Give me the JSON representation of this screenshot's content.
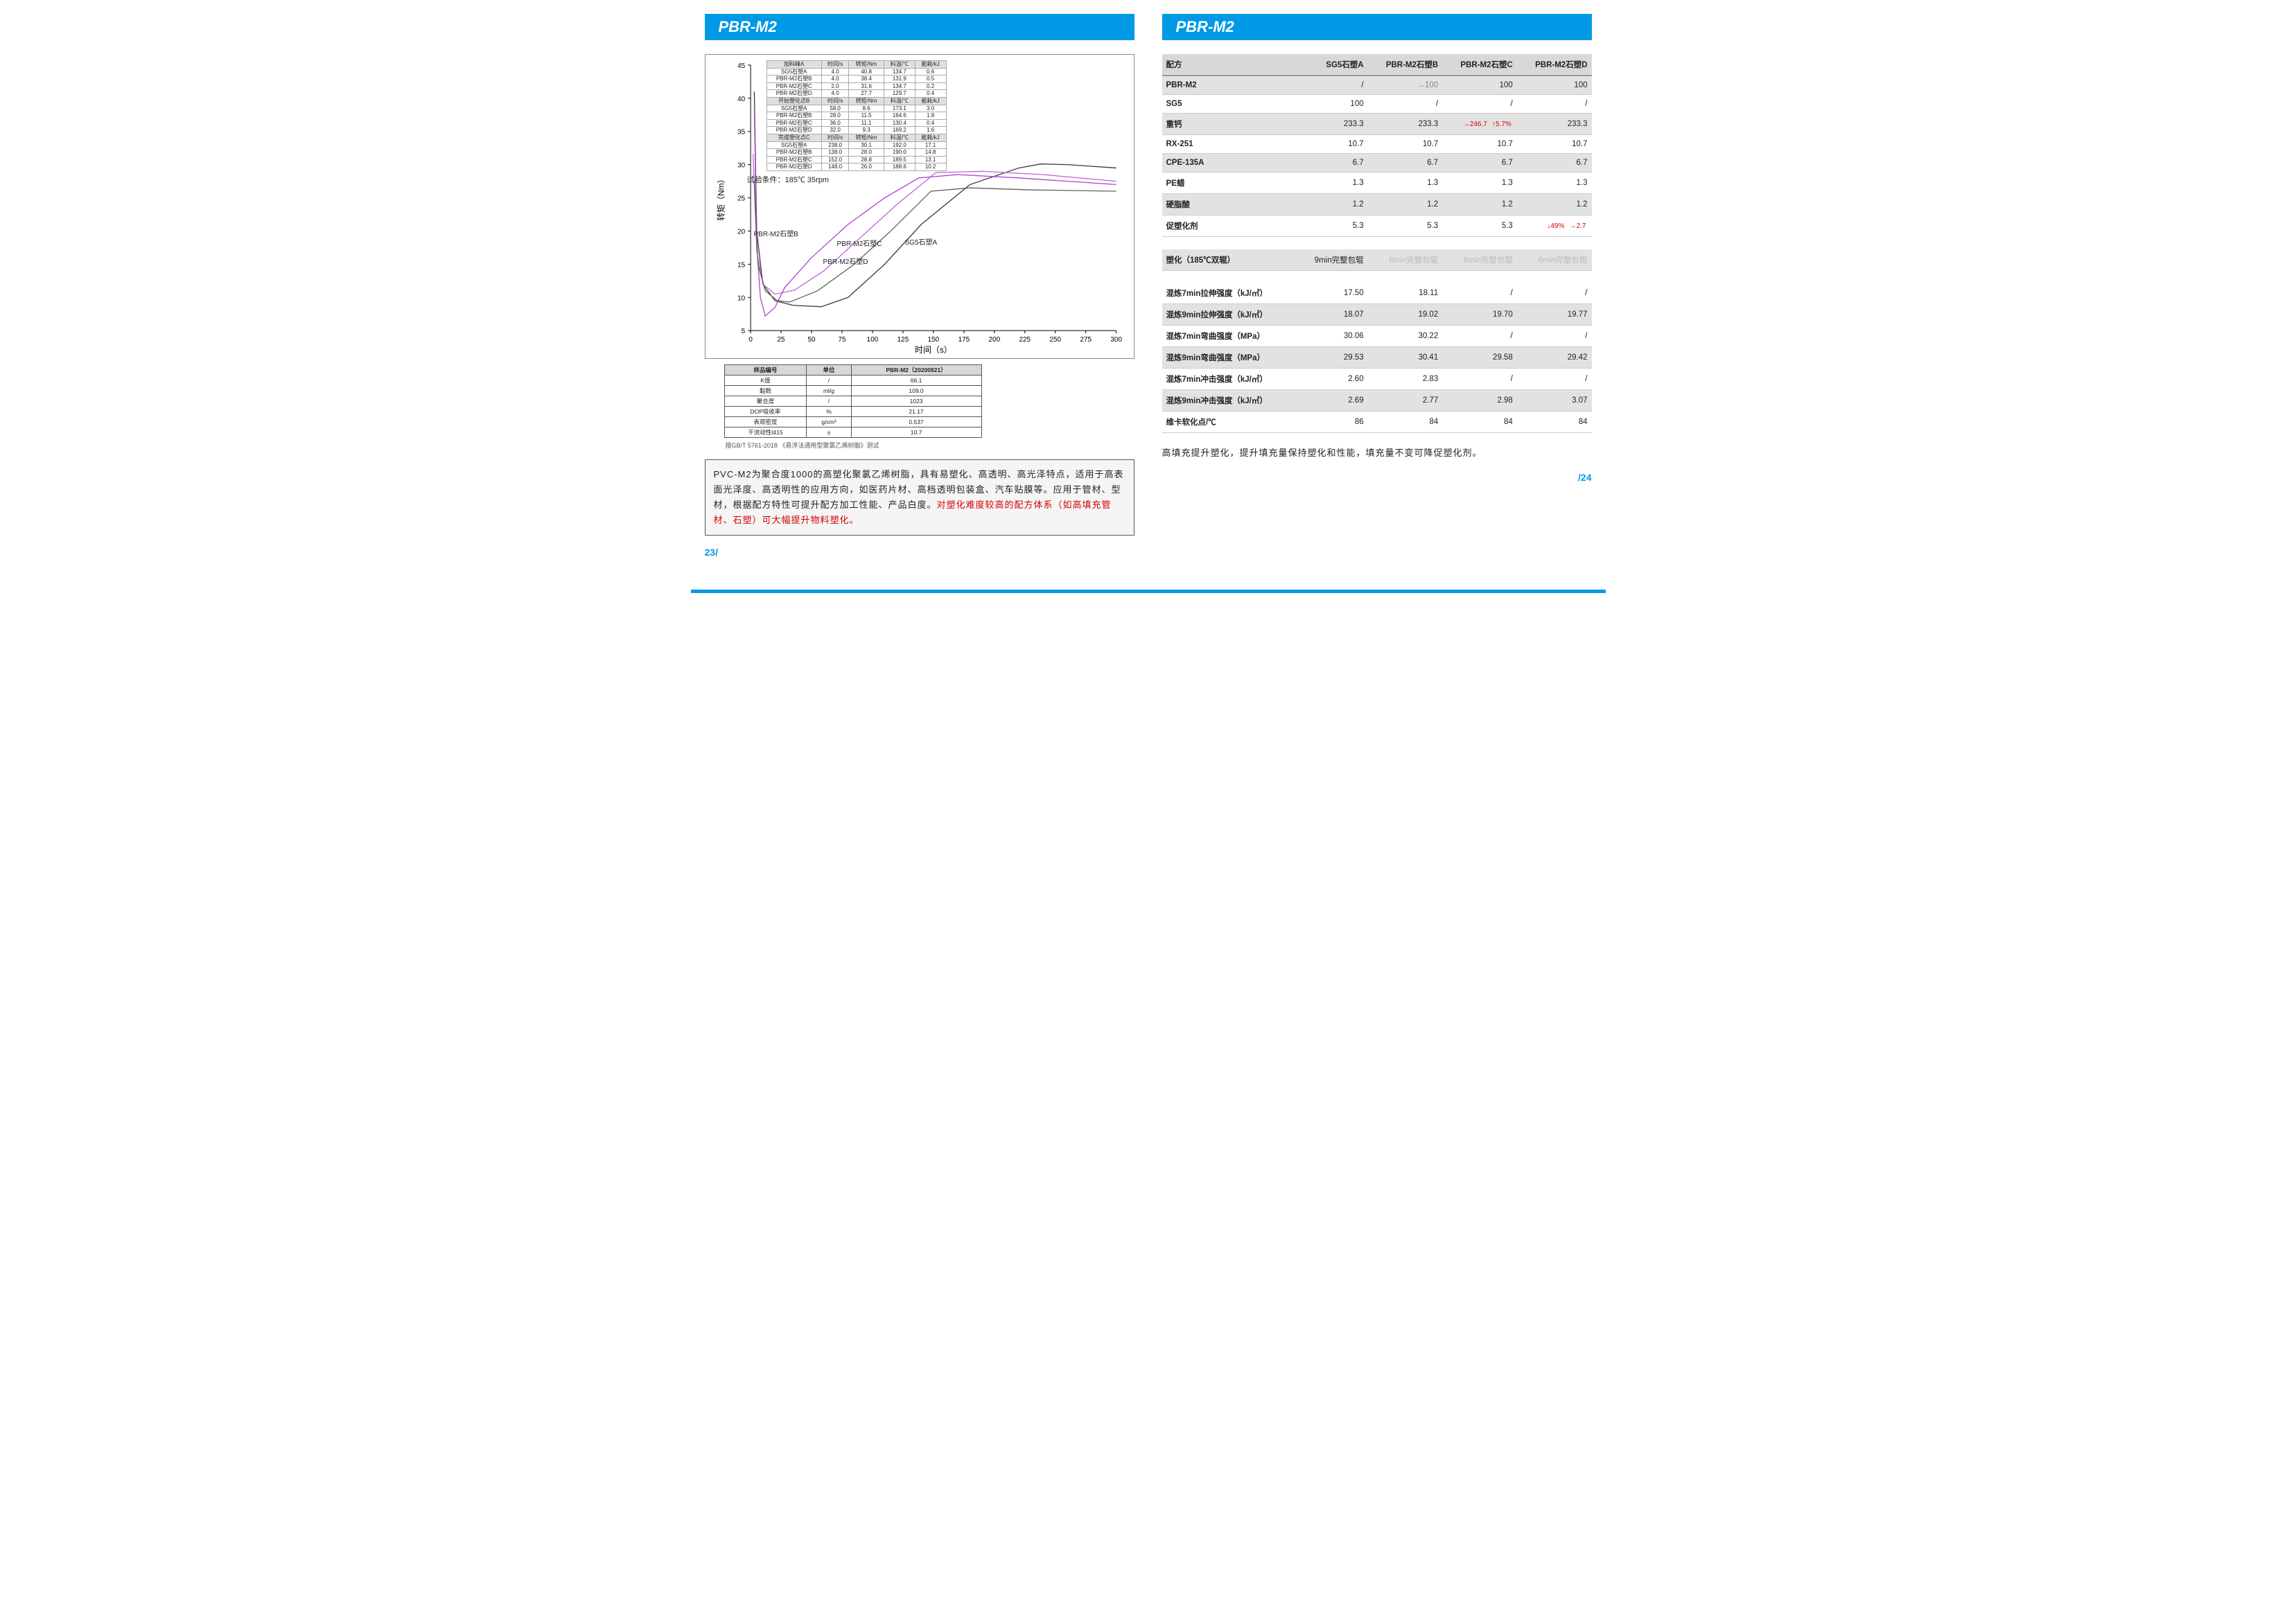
{
  "header": {
    "left": "PBR-M2",
    "right": "PBR-M2"
  },
  "chart": {
    "y_label": "转矩（Nm）",
    "x_label": "时间（s）",
    "xlim": [
      0,
      300
    ],
    "ylim": [
      5,
      45
    ],
    "xticks": [
      0,
      25,
      50,
      75,
      100,
      125,
      150,
      175,
      200,
      225,
      250,
      275,
      300
    ],
    "yticks": [
      5,
      10,
      15,
      20,
      25,
      30,
      35,
      40,
      45
    ],
    "condition": "试验条件：185℃  35rpm",
    "series_labels": {
      "A": "SG5石塑A",
      "B": "PBR-M2石塑B",
      "C": "PBR-M2石塑C",
      "D": "PBR-M2石塑D"
    },
    "colors": {
      "A": "#3a3a3a",
      "B": "#b040d0",
      "C": "#c060d8",
      "D": "#606060"
    },
    "table": {
      "sections": [
        {
          "hdr": [
            "加料峰A",
            "时间/s",
            "转矩/Nm",
            "料温/℃",
            "能耗/kJ"
          ],
          "rows": [
            [
              "SG5石塑A",
              "4.0",
              "40.8",
              "134.7",
              "0.6"
            ],
            [
              "PBR-M2石塑B",
              "4.0",
              "38.4",
              "131.9",
              "0.5"
            ],
            [
              "PBR-M2石塑C",
              "2.0",
              "31.6",
              "134.7",
              "0.2"
            ],
            [
              "PBR-M2石塑D",
              "4.0",
              "27.7",
              "129.7",
              "0.4"
            ]
          ]
        },
        {
          "hdr": [
            "开始塑化点B",
            "时间/s",
            "转矩/Nm",
            "料温/℃",
            "能耗/kJ"
          ],
          "rows": [
            [
              "SG5石塑A",
              "58.0",
              "8.6",
              "173.1",
              "3.0"
            ],
            [
              "PBR-M2石塑B",
              "28.0",
              "11.5",
              "164.6",
              "1.8"
            ],
            [
              "PBR-M2石塑C",
              "36.0",
              "11.1",
              "130.4",
              "0.4"
            ],
            [
              "PBR-M2石塑D",
              "32.0",
              "9.3",
              "169.2",
              "1.6"
            ]
          ]
        },
        {
          "hdr": [
            "完成塑化点C",
            "时间/s",
            "转矩/Nm",
            "料温/℃",
            "能耗/kJ"
          ],
          "rows": [
            [
              "SG5石塑A",
              "238.0",
              "30.1",
              "192.0",
              "17.1"
            ],
            [
              "PBR-M2石塑B",
              "138.0",
              "28.0",
              "190.0",
              "14.8"
            ],
            [
              "PBR-M2石塑C",
              "152.0",
              "28.8",
              "189.5",
              "13.1"
            ],
            [
              "PBR-M2石塑D",
              "148.0",
              "26.0",
              "188.6",
              "10.2"
            ]
          ]
        }
      ]
    },
    "lines": {
      "A": [
        [
          3,
          41
        ],
        [
          5,
          20
        ],
        [
          10,
          12
        ],
        [
          20,
          9.5
        ],
        [
          35,
          8.8
        ],
        [
          58,
          8.6
        ],
        [
          80,
          10
        ],
        [
          110,
          15
        ],
        [
          140,
          21
        ],
        [
          180,
          27
        ],
        [
          220,
          29.5
        ],
        [
          238,
          30.1
        ],
        [
          260,
          30
        ],
        [
          300,
          29.5
        ]
      ],
      "B": [
        [
          3,
          38.5
        ],
        [
          5,
          18
        ],
        [
          8,
          10
        ],
        [
          12,
          7.2
        ],
        [
          20,
          8.5
        ],
        [
          28,
          11.5
        ],
        [
          50,
          16
        ],
        [
          80,
          21
        ],
        [
          110,
          25
        ],
        [
          138,
          28
        ],
        [
          170,
          28.5
        ],
        [
          220,
          28
        ],
        [
          300,
          27
        ]
      ],
      "C": [
        [
          2,
          31.6
        ],
        [
          5,
          17
        ],
        [
          10,
          12
        ],
        [
          20,
          10.5
        ],
        [
          36,
          11.1
        ],
        [
          60,
          14
        ],
        [
          90,
          19
        ],
        [
          120,
          24
        ],
        [
          152,
          28.8
        ],
        [
          190,
          29
        ],
        [
          240,
          28.5
        ],
        [
          300,
          27.5
        ]
      ],
      "D": [
        [
          3,
          27.7
        ],
        [
          6,
          15
        ],
        [
          12,
          11
        ],
        [
          22,
          9.5
        ],
        [
          32,
          9.3
        ],
        [
          55,
          11
        ],
        [
          85,
          15
        ],
        [
          115,
          20
        ],
        [
          148,
          26
        ],
        [
          180,
          26.5
        ],
        [
          230,
          26.2
        ],
        [
          300,
          26
        ]
      ]
    }
  },
  "prop_table": {
    "headers": [
      "样品编号",
      "单位",
      "PBR-M2（20200821）"
    ],
    "rows": [
      [
        "K值",
        "/",
        "66.1"
      ],
      [
        "黏数",
        "ml/g",
        "109.0"
      ],
      [
        "聚合度",
        "/",
        "1023"
      ],
      [
        "DOP吸收率",
        "%",
        "21.17"
      ],
      [
        "表观密度",
        "g/cm³",
        "0.537"
      ],
      [
        "干流动性t415",
        "s",
        "10.7"
      ]
    ],
    "note": "按GB/T 5761-2018 《悬浮法通用型聚氯乙烯树脂》测试"
  },
  "desc": {
    "black": "PVC-M2为聚合度1000的高塑化聚氯乙烯树脂，具有易塑化、高透明、高光泽特点，适用于高表面光泽度、高透明性的应用方向，如医药片材、高档透明包装盒、汽车贴膜等。应用于管材、型材，根据配方特性可提升配方加工性能、产品白度。",
    "red": "对塑化难度较高的配方体系（如高填充管材、石塑）可大幅提升物料塑化。"
  },
  "formula": {
    "cols": [
      "配方",
      "SG5石塑A",
      "PBR-M2石塑B",
      "PBR-M2石塑C",
      "PBR-M2石塑D"
    ],
    "rows": [
      {
        "alt": true,
        "cells": [
          "PBR-M2",
          "/",
          "→100",
          "100",
          "100"
        ]
      },
      {
        "cells": [
          "SG5",
          "100",
          "/",
          "/",
          "/"
        ]
      },
      {
        "alt": true,
        "cells": [
          "重钙",
          "233.3",
          "233.3",
          "→246.7 ↑5.7%",
          "233.3"
        ],
        "red": [
          3
        ]
      },
      {
        "cells": [
          "RX-251",
          "10.7",
          "10.7",
          "10.7",
          "10.7"
        ]
      },
      {
        "alt": true,
        "cells": [
          "CPE-135A",
          "6.7",
          "6.7",
          "6.7",
          "6.7"
        ]
      },
      {
        "cells": [
          "PE蜡",
          "1.3",
          "1.3",
          "1.3",
          "1.3"
        ]
      },
      {
        "alt": true,
        "cells": [
          "硬脂酸",
          "1.2",
          "1.2",
          "1.2",
          "1.2"
        ]
      },
      {
        "cells": [
          "促塑化剂",
          "5.3",
          "5.3",
          "5.3",
          "↓49% →2.7"
        ],
        "red": [
          4
        ]
      }
    ],
    "rows2": [
      {
        "alt": true,
        "cells": [
          "塑化（185℃双辊）",
          "9min完整包辊",
          "6min完整包辊",
          "6min完整包辊",
          "6min完整包辊"
        ],
        "faded": [
          2,
          3,
          4
        ]
      },
      {
        "spacer": true
      },
      {
        "cells": [
          "混炼7min拉伸强度（kJ/㎡）",
          "17.50",
          "18.11",
          "/",
          "/"
        ]
      },
      {
        "alt": true,
        "cells": [
          "混炼9min拉伸强度（kJ/㎡）",
          "18.07",
          "19.02",
          "19.70",
          "19.77"
        ]
      },
      {
        "cells": [
          "混炼7min弯曲强度（MPa）",
          "30.06",
          "30.22",
          "/",
          "/"
        ]
      },
      {
        "alt": true,
        "cells": [
          "混炼9min弯曲强度（MPa）",
          "29.53",
          "30.41",
          "29.58",
          "29.42"
        ]
      },
      {
        "cells": [
          "混炼7min冲击强度（kJ/㎡）",
          "2.60",
          "2.83",
          "/",
          "/"
        ]
      },
      {
        "alt": true,
        "cells": [
          "混炼9min冲击强度（kJ/㎡）",
          "2.69",
          "2.77",
          "2.98",
          "3.07"
        ]
      },
      {
        "cells": [
          "维卡软化点/℃",
          "86",
          "84",
          "84",
          "84"
        ]
      }
    ],
    "note": "高填充提升塑化，提升填充量保持塑化和性能，填充量不变可降促塑化剂。"
  },
  "page_no": {
    "left": "23/",
    "right": "/24"
  }
}
